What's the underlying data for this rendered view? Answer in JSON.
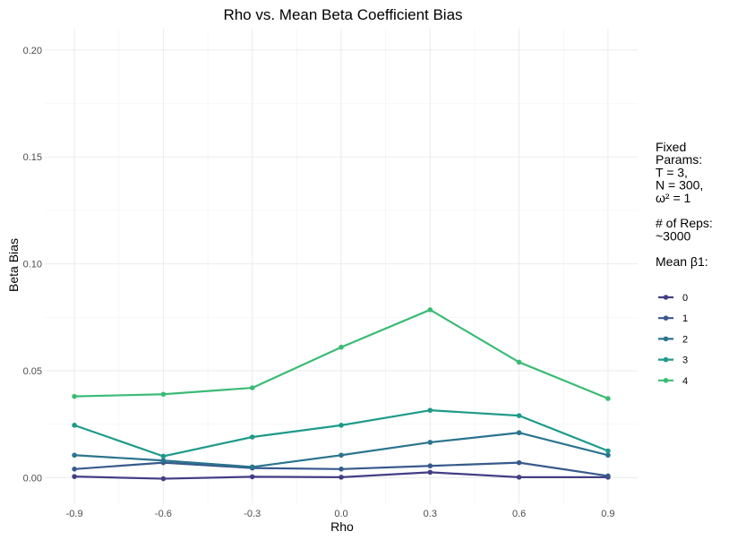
{
  "chart_data": {
    "type": "line",
    "title": "Rho vs. Mean Beta Coefficient Bias",
    "xlabel": "Rho",
    "ylabel": "Beta Bias",
    "x": [
      -0.9,
      -0.6,
      -0.3,
      0.0,
      0.3,
      0.6,
      0.9
    ],
    "x_tick_labels": [
      "-0.9",
      "-0.6",
      "-0.3",
      "0.0",
      "0.3",
      "0.6",
      "0.9"
    ],
    "ylim": [
      -0.012,
      0.21
    ],
    "y_ticks": [
      0.0,
      0.05,
      0.1,
      0.15,
      0.2
    ],
    "y_tick_labels": [
      "0.00",
      "0.05",
      "0.10",
      "0.15",
      "0.20"
    ],
    "grid": true,
    "legend_position": "right",
    "legend_notes": [
      "Fixed",
      "Params:",
      "T = 3,",
      "N = 300,",
      "ω² = 1",
      "",
      "# of Reps:",
      "~3000",
      "",
      "Mean β1:"
    ],
    "series": [
      {
        "name": "0",
        "color": "#433E85",
        "values": [
          0.0005,
          -0.0005,
          0.0004,
          0.0002,
          0.0025,
          0.0002,
          0.0002
        ]
      },
      {
        "name": "1",
        "color": "#38598C",
        "values": [
          0.004,
          0.007,
          0.0045,
          0.004,
          0.0055,
          0.007,
          0.0008
        ]
      },
      {
        "name": "2",
        "color": "#2B748E",
        "values": [
          0.0105,
          0.008,
          0.005,
          0.0105,
          0.0165,
          0.021,
          0.0105
        ]
      },
      {
        "name": "3",
        "color": "#1E9A8A",
        "values": [
          0.0245,
          0.01,
          0.019,
          0.0245,
          0.0315,
          0.029,
          0.0125
        ]
      },
      {
        "name": "4",
        "color": "#3BBB75",
        "values": [
          0.038,
          0.039,
          0.042,
          0.061,
          0.0785,
          0.054,
          0.037
        ]
      }
    ]
  }
}
